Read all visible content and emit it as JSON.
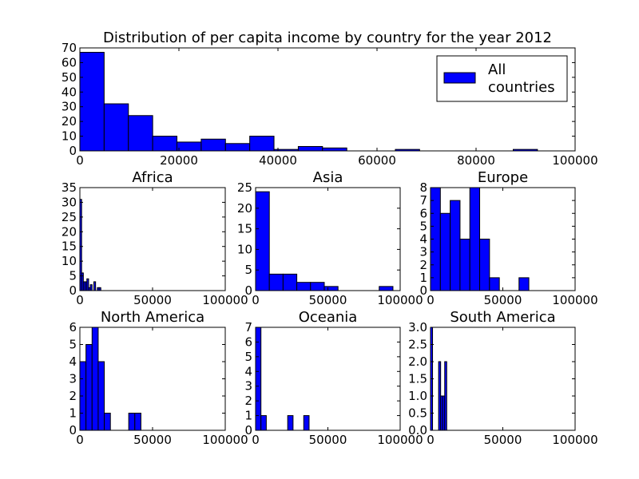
{
  "chart_data": [
    {
      "id": "all",
      "type": "histogram",
      "title": "Distribution of per capita income by country for the year 2012",
      "xlim": [
        0,
        100000
      ],
      "ylim": [
        0,
        70
      ],
      "xticks": [
        "0",
        "20000",
        "40000",
        "60000",
        "80000",
        "100000"
      ],
      "yticks": [
        "0",
        "10",
        "20",
        "30",
        "40",
        "50",
        "60",
        "70"
      ],
      "bin_width": 4900,
      "bins": [
        {
          "x0": 0,
          "x1": 4900,
          "value": 67
        },
        {
          "x0": 4900,
          "x1": 9800,
          "value": 32
        },
        {
          "x0": 9800,
          "x1": 14700,
          "value": 24
        },
        {
          "x0": 14700,
          "x1": 19600,
          "value": 10
        },
        {
          "x0": 19600,
          "x1": 24500,
          "value": 6
        },
        {
          "x0": 24500,
          "x1": 29400,
          "value": 8
        },
        {
          "x0": 29400,
          "x1": 34300,
          "value": 5
        },
        {
          "x0": 34300,
          "x1": 39200,
          "value": 10
        },
        {
          "x0": 39200,
          "x1": 44100,
          "value": 1
        },
        {
          "x0": 44100,
          "x1": 49000,
          "value": 3
        },
        {
          "x0": 49000,
          "x1": 53900,
          "value": 2
        },
        {
          "x0": 63700,
          "x1": 68600,
          "value": 1
        },
        {
          "x0": 87500,
          "x1": 92400,
          "value": 1
        }
      ],
      "legend": {
        "label_lines": [
          "All",
          "countries"
        ],
        "position": "upper right"
      }
    },
    {
      "id": "africa",
      "type": "histogram",
      "title": "Africa",
      "xlim": [
        0,
        100000
      ],
      "ylim": [
        0,
        35
      ],
      "xticks": [
        "0",
        "50000",
        "100000"
      ],
      "yticks": [
        "0",
        "5",
        "10",
        "15",
        "20",
        "25",
        "30",
        "35"
      ],
      "bins": [
        {
          "x0": 0,
          "x1": 1200,
          "value": 31
        },
        {
          "x0": 1200,
          "x1": 2400,
          "value": 6
        },
        {
          "x0": 2400,
          "x1": 3600,
          "value": 3
        },
        {
          "x0": 3600,
          "x1": 4800,
          "value": 3
        },
        {
          "x0": 4800,
          "x1": 6000,
          "value": 4
        },
        {
          "x0": 6000,
          "x1": 7200,
          "value": 1
        },
        {
          "x0": 7200,
          "x1": 8400,
          "value": 2
        },
        {
          "x0": 9600,
          "x1": 10800,
          "value": 3
        },
        {
          "x0": 10800,
          "x1": 12000,
          "value": 0
        },
        {
          "x0": 12000,
          "x1": 13200,
          "value": 1
        },
        {
          "x0": 13200,
          "x1": 14400,
          "value": 1
        }
      ]
    },
    {
      "id": "asia",
      "type": "histogram",
      "title": "Asia",
      "xlim": [
        0,
        100000
      ],
      "ylim": [
        0,
        25
      ],
      "xticks": [
        "0",
        "50000",
        "100000"
      ],
      "yticks": [
        "0",
        "5",
        "10",
        "15",
        "20",
        "25"
      ],
      "bins": [
        {
          "x0": 0,
          "x1": 9500,
          "value": 24
        },
        {
          "x0": 9500,
          "x1": 19000,
          "value": 4
        },
        {
          "x0": 19000,
          "x1": 28500,
          "value": 4
        },
        {
          "x0": 28500,
          "x1": 38000,
          "value": 2
        },
        {
          "x0": 38000,
          "x1": 47500,
          "value": 2
        },
        {
          "x0": 47500,
          "x1": 57000,
          "value": 1
        },
        {
          "x0": 85500,
          "x1": 95000,
          "value": 1
        }
      ]
    },
    {
      "id": "europe",
      "type": "histogram",
      "title": "Europe",
      "xlim": [
        0,
        100000
      ],
      "ylim": [
        0,
        8
      ],
      "xticks": [
        "0",
        "50000",
        "100000"
      ],
      "yticks": [
        "0",
        "1",
        "2",
        "3",
        "4",
        "5",
        "6",
        "7",
        "8"
      ],
      "bins": [
        {
          "x0": 0,
          "x1": 6800,
          "value": 8
        },
        {
          "x0": 6800,
          "x1": 13600,
          "value": 6
        },
        {
          "x0": 13600,
          "x1": 20400,
          "value": 7
        },
        {
          "x0": 20400,
          "x1": 27200,
          "value": 4
        },
        {
          "x0": 27200,
          "x1": 34000,
          "value": 8
        },
        {
          "x0": 34000,
          "x1": 40800,
          "value": 4
        },
        {
          "x0": 40800,
          "x1": 47600,
          "value": 1
        },
        {
          "x0": 61200,
          "x1": 68000,
          "value": 1
        }
      ]
    },
    {
      "id": "north_america",
      "type": "histogram",
      "title": "North America",
      "xlim": [
        0,
        100000
      ],
      "ylim": [
        0,
        6
      ],
      "xticks": [
        "0",
        "50000",
        "100000"
      ],
      "yticks": [
        "0",
        "1",
        "2",
        "3",
        "4",
        "5",
        "6"
      ],
      "bins": [
        {
          "x0": 0,
          "x1": 4200,
          "value": 4
        },
        {
          "x0": 4200,
          "x1": 8400,
          "value": 5
        },
        {
          "x0": 8400,
          "x1": 12600,
          "value": 6
        },
        {
          "x0": 12600,
          "x1": 16800,
          "value": 4
        },
        {
          "x0": 16800,
          "x1": 21000,
          "value": 1
        },
        {
          "x0": 33600,
          "x1": 37800,
          "value": 1
        },
        {
          "x0": 37800,
          "x1": 42000,
          "value": 1
        }
      ]
    },
    {
      "id": "oceania",
      "type": "histogram",
      "title": "Oceania",
      "xlim": [
        0,
        100000
      ],
      "ylim": [
        0,
        7
      ],
      "xticks": [
        "0",
        "50000",
        "100000"
      ],
      "yticks": [
        "0",
        "1",
        "2",
        "3",
        "4",
        "5",
        "6",
        "7"
      ],
      "bins": [
        {
          "x0": 0,
          "x1": 3700,
          "value": 7
        },
        {
          "x0": 3700,
          "x1": 7400,
          "value": 1
        },
        {
          "x0": 22200,
          "x1": 25900,
          "value": 1
        },
        {
          "x0": 33300,
          "x1": 37000,
          "value": 1
        }
      ]
    },
    {
      "id": "south_america",
      "type": "histogram",
      "title": "South America",
      "xlim": [
        0,
        100000
      ],
      "ylim": [
        0,
        3
      ],
      "xticks": [
        "0",
        "50000",
        "100000"
      ],
      "yticks": [
        "0.0",
        "0.5",
        "1.0",
        "1.5",
        "2.0",
        "2.5",
        "3.0"
      ],
      "bins": [
        {
          "x0": 0,
          "x1": 1400,
          "value": 3
        },
        {
          "x0": 1400,
          "x1": 2800,
          "value": 0
        },
        {
          "x0": 5600,
          "x1": 7000,
          "value": 2
        },
        {
          "x0": 7000,
          "x1": 8400,
          "value": 1
        },
        {
          "x0": 8400,
          "x1": 9800,
          "value": 1
        },
        {
          "x0": 9800,
          "x1": 11200,
          "value": 2
        }
      ]
    }
  ],
  "colors": {
    "bar_fill": "#0000ff",
    "bar_edge": "#000000",
    "axes_edge": "#000000",
    "background": "#ffffff"
  }
}
